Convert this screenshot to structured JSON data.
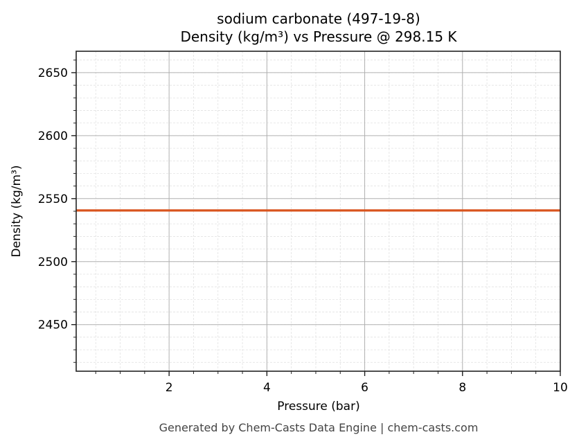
{
  "chart_data": {
    "type": "line",
    "title": "sodium carbonate (497-19-8)",
    "subtitle": "Density (kg/m³) vs Pressure @ 298.15 K",
    "xlabel": "Pressure (bar)",
    "ylabel": "Density (kg/m³)",
    "xlim": [
      0.1,
      10
    ],
    "ylim": [
      2413,
      2667
    ],
    "x_ticks": [
      2,
      4,
      6,
      8,
      10
    ],
    "y_ticks": [
      2450,
      2500,
      2550,
      2600,
      2650
    ],
    "grid": true,
    "minor_grid": true,
    "legend": null,
    "series": [
      {
        "name": "Density",
        "color": "#d9541e",
        "x": [
          0.1,
          10
        ],
        "y": [
          2540.6,
          2540.6
        ]
      }
    ]
  },
  "labels": {
    "title_line1": "sodium carbonate (497-19-8)",
    "title_line2": "Density (kg/m³) vs Pressure @ 298.15 K",
    "xlabel": "Pressure (bar)",
    "ylabel": "Density (kg/m³)",
    "footer": "Generated by Chem-Casts Data Engine | chem-casts.com"
  }
}
